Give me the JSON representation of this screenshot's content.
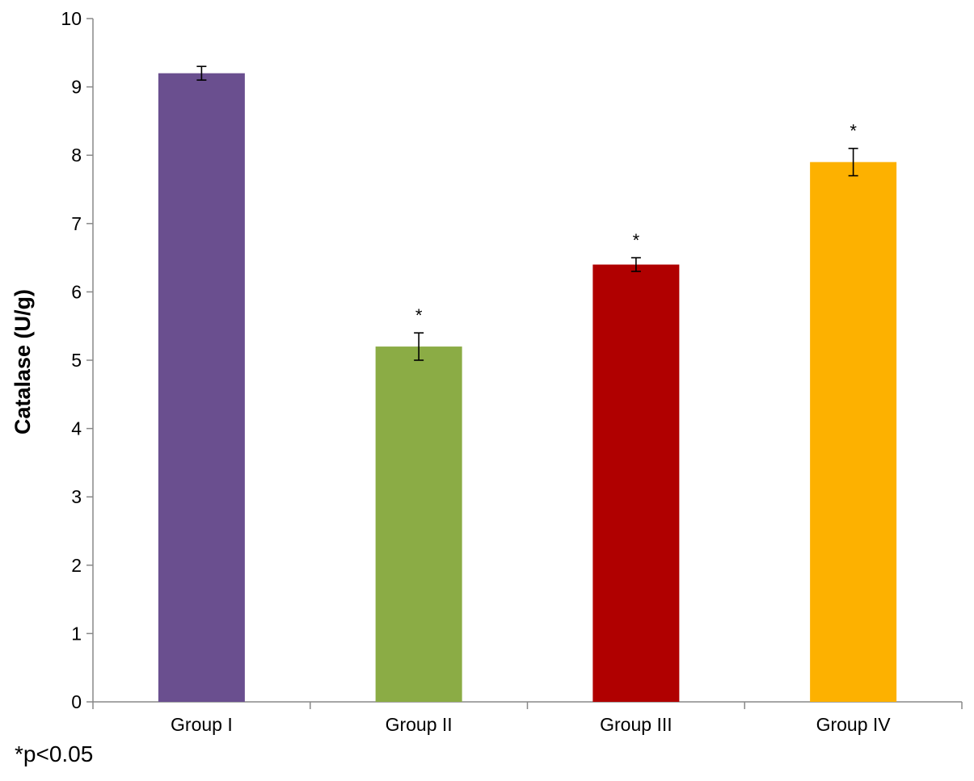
{
  "chart_data": {
    "type": "bar",
    "title": "",
    "xlabel": "",
    "ylabel": "Catalase (U/g)",
    "ylim": [
      0,
      10
    ],
    "yticks": [
      0,
      1,
      2,
      3,
      4,
      5,
      6,
      7,
      8,
      9,
      10
    ],
    "grid": false,
    "categories": [
      "Group I",
      "Group II",
      "Group III",
      "Group IV"
    ],
    "values": [
      9.2,
      5.2,
      6.4,
      7.9
    ],
    "error": [
      0.1,
      0.2,
      0.1,
      0.2
    ],
    "significance": [
      "",
      "*",
      "*",
      "*"
    ],
    "colors": [
      "#6a4f8f",
      "#8bac45",
      "#b00000",
      "#fdb100"
    ]
  },
  "footnote": "*p<0.05"
}
